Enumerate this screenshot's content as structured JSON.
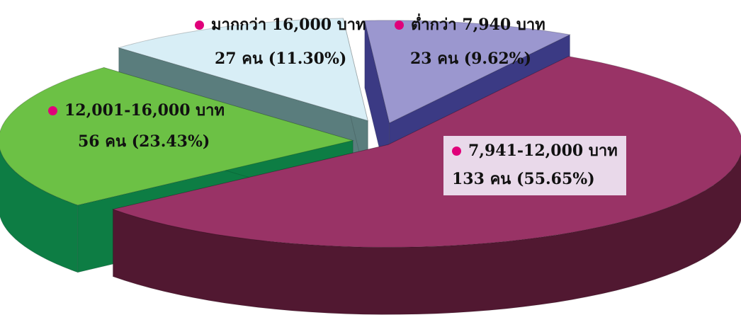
{
  "chart_data": {
    "type": "pie",
    "style": "3d-exploded",
    "title": "",
    "slices": [
      {
        "key": "above-16000",
        "label": "มากกว่า 16,000 บาท",
        "count_label": "27 คน  (11.30%)",
        "count": 27,
        "percent": 11.3,
        "top_color": "#d8eef6",
        "side_color": "#5a7d7d",
        "label_bg": ""
      },
      {
        "key": "below-7940",
        "label": "ต่ำกว่า 7,940 บาท",
        "count_label": "23 คน  (9.62%)",
        "count": 23,
        "percent": 9.62,
        "top_color": "#9b97cf",
        "side_color": "#3b3a84",
        "label_bg": ""
      },
      {
        "key": "7941-12000",
        "label": "7,941-12,000 บาท",
        "count_label": "133 คน  (55.65%)",
        "count": 133,
        "percent": 55.65,
        "top_color": "#993366",
        "side_color": "#511831",
        "label_bg": "#e9d9ea"
      },
      {
        "key": "12001-16000",
        "label": "12,001-16,000 บาท",
        "count_label": "56 คน  (23.43%)",
        "count": 56,
        "percent": 23.43,
        "top_color": "#6cc145",
        "side_color": "#0d7d44",
        "label_bg": ""
      }
    ]
  },
  "colors": {
    "bullet": "#e0007a",
    "label_text": "#111111"
  },
  "labels": {
    "above_16000": {
      "title": "มากกว่า 16,000 บาท",
      "count": "27 คน  (11.30%)"
    },
    "below_7940": {
      "title": "ต่ำกว่า 7,940 บาท",
      "count": "23 คน  (9.62%)"
    },
    "range_12001_16000": {
      "title": "12,001-16,000 บาท",
      "count": "56 คน  (23.43%)"
    },
    "range_7941_12000": {
      "title": "7,941-12,000 บาท",
      "count": "133 คน  (55.65%)"
    }
  }
}
